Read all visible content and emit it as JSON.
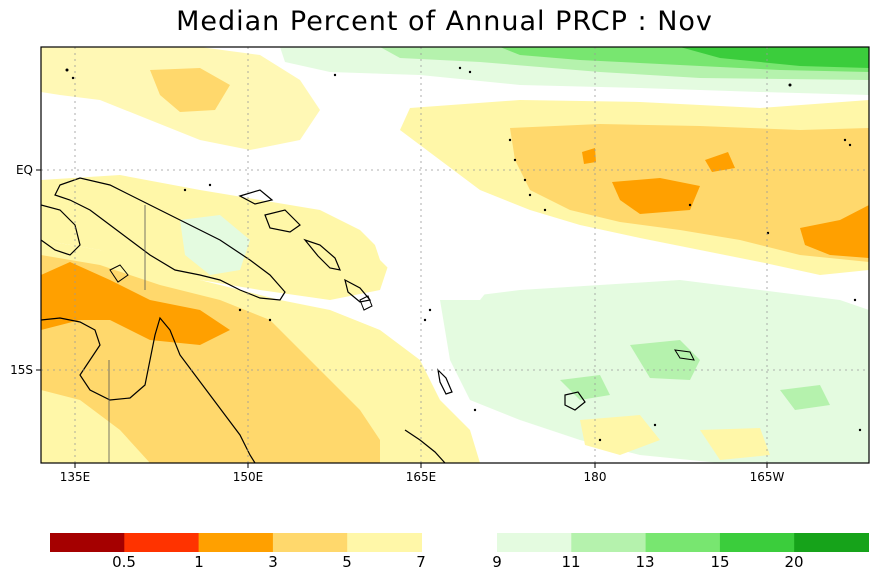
{
  "title": "Median Percent of Annual PRCP :   Nov",
  "axes": {
    "lon_ticks": [
      "135E",
      "150E",
      "165E",
      "180",
      "165W"
    ],
    "lat_ticks": [
      "EQ",
      "15S"
    ]
  },
  "colorbar": {
    "dry": {
      "colors": [
        "#a50000",
        "#ff3300",
        "#ffa000",
        "#ffd86c",
        "#fff7a8"
      ],
      "labels": [
        "0.5",
        "1",
        "3",
        "5",
        "7"
      ]
    },
    "wet": {
      "colors": [
        "#e4fbe0",
        "#b5f2ad",
        "#78e670",
        "#3bcd3c",
        "#16a31a"
      ],
      "labels": [
        "9",
        "11",
        "13",
        "15",
        "20"
      ]
    }
  }
}
